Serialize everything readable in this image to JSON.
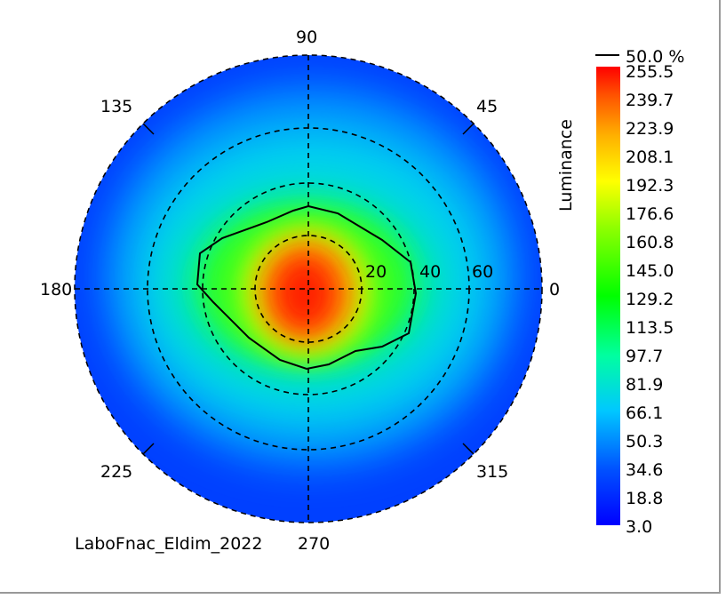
{
  "chart_data": {
    "type": "heatmap",
    "subtype": "polar-conoscope",
    "title": "",
    "caption": "LaboFnac_Eldim_2022",
    "angular_labels": [
      "0",
      "45",
      "90",
      "135",
      "180",
      "225",
      "270",
      "315"
    ],
    "radial_labels": [
      "20",
      "40",
      "60"
    ],
    "colorbar": {
      "label": "Luminance",
      "ticks": [
        "255.5",
        "239.7",
        "223.9",
        "208.1",
        "192.3",
        "176.6",
        "160.8",
        "145.0",
        "129.2",
        "113.5",
        "97.7",
        "81.9",
        "66.1",
        "50.3",
        "34.6",
        "18.8",
        "3.0"
      ],
      "range": [
        3.0,
        255.5
      ]
    },
    "contour": {
      "label": "50.0 %",
      "level_percent": 50.0
    },
    "peak": {
      "value_approx": 255.5,
      "theta_deg": 270,
      "radius_deg": 2
    },
    "colors": {
      "low": "#0000ff",
      "mid": "#00ff00",
      "high": "#ff0000"
    }
  }
}
